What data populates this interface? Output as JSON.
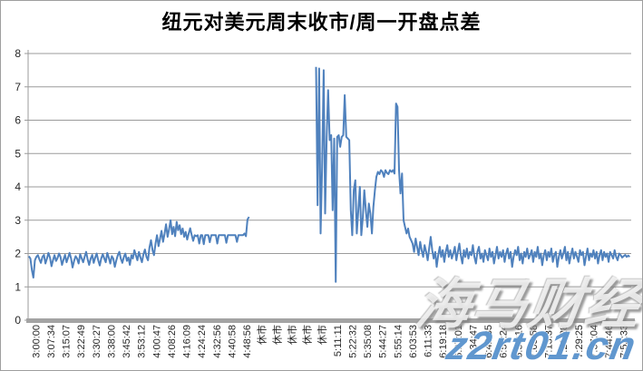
{
  "page": {
    "background": "#ffffff",
    "border_color": "#9e9e9e"
  },
  "watermark": {
    "brand": "海马财经",
    "url": "z2rt01.cn",
    "url_color": "#4a89c8"
  },
  "chart_data": {
    "type": "line",
    "title": "纽元对美元周末收市/周一开盘点差",
    "xlabel": "",
    "ylabel": "",
    "ylim": [
      0,
      8
    ],
    "ytick_step": 1,
    "grid": true,
    "legend": false,
    "line_color": "#4F81BD",
    "gridline_color": "#9B9B9B",
    "axis_color": "#A3A3A3",
    "tick_label_color": "#262626",
    "categories": [
      "3:00:00",
      "3:07:34",
      "3:15:07",
      "3:22:49",
      "3:30:27",
      "3:38:00",
      "3:45:42",
      "3:53:12",
      "4:00:47",
      "4:08:26",
      "4:16:09",
      "4:24:24",
      "4:32:56",
      "4:40:58",
      "4:48:56",
      "休市",
      "休市",
      "休市",
      "休市",
      "休市",
      "5:11:11",
      "5:22:32",
      "5:35:08",
      "5:44:27",
      "5:55:14",
      "6:03:53",
      "6:11:33",
      "6:19:18",
      "6:27:01",
      "6:34:47",
      "6:42:35",
      "6:50:24",
      "6:58:16",
      "7:05:58",
      "7:13:37",
      "7:21:28",
      "7:29:25",
      "7:37:04",
      "7:44:46",
      "7:52:33"
    ],
    "series": [
      {
        "name": "周末收市/周一开盘点差",
        "segments": [
          {
            "x0": -0.45,
            "dx": 0.1,
            "values": [
              1.92,
              1.85,
              1.5,
              1.28,
              1.8,
              1.9,
              1.95,
              1.82,
              1.72,
              1.9,
              1.96,
              1.7,
              1.85,
              2.02,
              1.88,
              1.62,
              1.8,
              1.95,
              1.78,
              1.86,
              2.0,
              1.9,
              1.66,
              1.82,
              1.96,
              1.74,
              1.88,
              2.02,
              1.85,
              1.58,
              1.78,
              1.92,
              1.85,
              1.7,
              1.98,
              1.86,
              1.74,
              1.9,
              2.05,
              1.82,
              1.66,
              1.85,
              1.96,
              1.72,
              1.88,
              2.0,
              1.8,
              1.64,
              1.85,
              1.98,
              1.85,
              1.74,
              2.02,
              1.88,
              1.7,
              1.92,
              1.85,
              1.6,
              1.8,
              1.95,
              2.05,
              1.85,
              1.72,
              1.9,
              2.0,
              1.78,
              1.88,
              1.66,
              1.95,
              1.85,
              2.1,
              1.94,
              1.8,
              2.05,
              1.88,
              1.74,
              1.98,
              2.12,
              1.9,
              1.8,
              2.18,
              2.4,
              2.1,
              1.95,
              2.3,
              2.55,
              2.22,
              2.45,
              2.68,
              2.35,
              2.6,
              2.88,
              2.5,
              2.72,
              3.0,
              2.58,
              2.8,
              2.52,
              2.95,
              2.7,
              2.85,
              2.58,
              2.75,
              2.5,
              2.65,
              2.42,
              2.6,
              2.76,
              2.55,
              2.38,
              2.55,
              2.52,
              2.55,
              2.3,
              2.55,
              2.55,
              2.28,
              2.55,
              2.55,
              2.55,
              2.34,
              2.55,
              2.55,
              2.55,
              2.55,
              2.3,
              2.55,
              2.55,
              2.55,
              2.55,
              2.55,
              2.32,
              2.55,
              2.55,
              2.55,
              2.55,
              2.55,
              2.55,
              2.35,
              2.55,
              2.55,
              2.55,
              2.55,
              2.6,
              2.52,
              3.02,
              3.1
            ]
          },
          {
            "x0": 18.6,
            "dx": 0.1,
            "values": [
              7.6,
              3.45,
              7.55,
              2.6,
              4.6,
              7.5,
              3.2,
              5.5,
              6.9,
              5.4,
              5.55,
              3.3,
              5.45,
              1.15,
              5.5,
              5.55,
              5.2,
              5.5,
              5.55,
              6.75,
              5.5,
              5.45,
              5.4,
              3.3,
              2.55,
              3.9,
              4.2,
              2.6,
              3.3,
              4.0,
              2.55,
              3.1,
              3.9,
              3.3,
              2.8,
              3.5,
              3.2,
              2.6,
              3.4,
              3.9,
              4.3,
              4.45,
              4.38,
              4.5,
              4.45,
              4.3,
              4.5,
              4.42,
              4.38,
              4.5,
              4.45,
              4.5,
              4.4,
              6.5,
              6.4,
              4.5,
              3.8,
              4.4,
              3.0,
              2.8,
              2.6,
              2.75,
              2.5,
              2.4,
              2.3,
              2.05,
              2.45,
              2.2,
              1.95,
              2.35,
              2.1,
              1.9,
              2.25,
              2.05,
              1.8,
              2.15,
              2.5,
              2.1,
              1.85,
              2.05,
              1.6,
              1.95,
              2.2,
              1.9,
              2.1,
              1.75,
              2.05,
              2.25,
              1.9,
              2.1,
              1.85,
              2.0,
              2.2,
              1.8,
              2.05,
              2.3,
              1.95,
              1.7,
              2.1,
              1.9,
              2.15,
              1.85,
              2.05,
              1.95,
              2.25,
              1.9,
              1.7,
              2.05,
              2.2,
              1.85,
              2.0,
              1.75,
              2.1,
              1.95,
              1.8,
              2.15,
              1.9,
              2.05,
              1.7,
              1.95,
              2.2,
              1.85,
              2.05,
              1.9,
              2.1,
              1.75,
              2.0,
              2.15,
              1.85,
              2.05,
              1.6,
              1.9,
              2.1,
              1.95,
              2.2,
              1.8,
              2.0,
              1.7,
              2.05,
              1.9,
              2.15,
              1.85,
              1.95,
              2.1,
              1.75,
              2.05,
              1.9,
              2.2,
              1.85,
              2.0,
              1.65,
              1.95,
              2.1,
              1.8,
              2.05,
              1.9,
              2.15,
              1.75,
              1.95,
              2.05,
              1.6,
              1.9,
              2.1,
              1.85,
              2.0,
              2.2,
              1.8,
              2.05,
              1.7,
              1.95,
              2.15,
              1.85,
              2.05,
              1.9,
              1.75,
              2.1,
              1.95,
              2.05,
              1.65,
              1.9,
              2.15,
              1.8,
              2.0,
              1.9,
              2.1,
              1.85,
              2.05,
              1.7,
              1.95,
              2.1,
              1.8,
              2.05,
              1.9,
              2.0,
              1.75,
              2.05,
              1.95,
              1.85,
              2.1,
              1.9,
              1.8,
              2.0,
              1.95,
              1.88,
              1.92,
              1.96,
              1.9,
              1.94,
              1.9
            ]
          }
        ]
      }
    ]
  }
}
